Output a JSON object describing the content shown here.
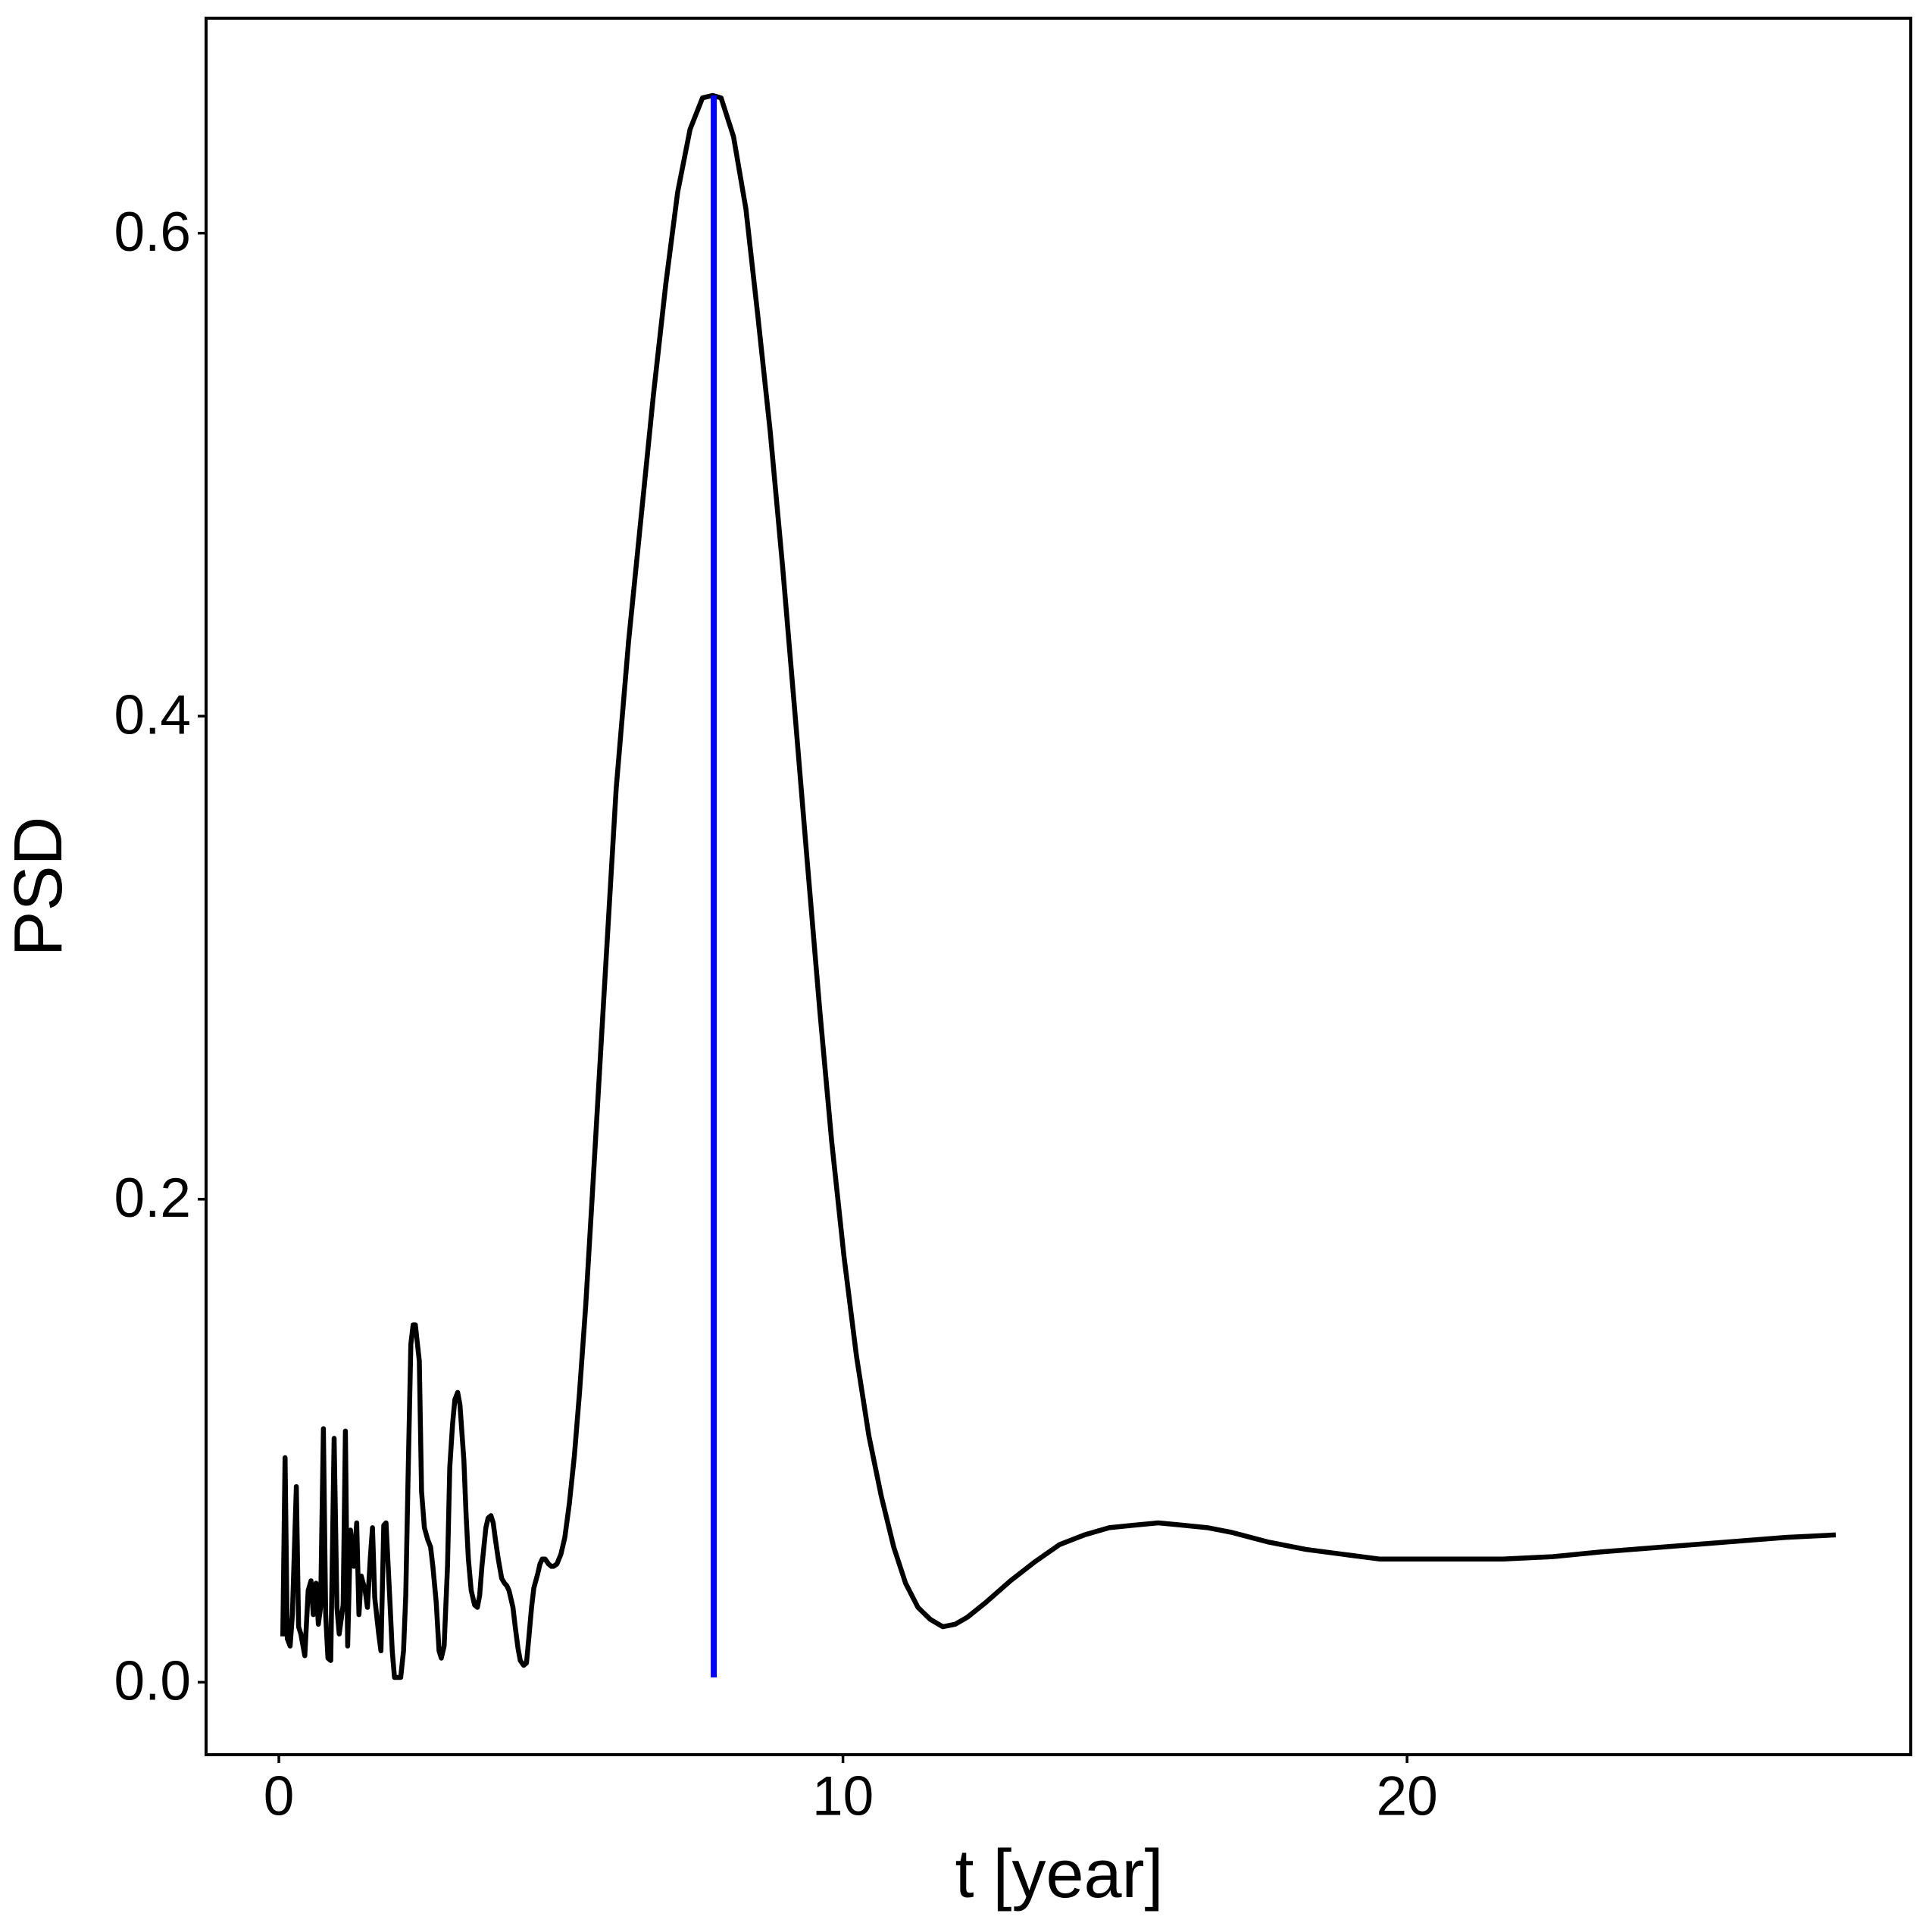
{
  "chart_data": {
    "type": "line",
    "x_label": "t [year]",
    "y_label": "PSD",
    "xlim": [
      -1.29,
      28.93
    ],
    "ylim": [
      -0.03,
      0.689
    ],
    "xticks": [
      0,
      10,
      20
    ],
    "yticks": [
      {
        "value": 0,
        "label": "0.0"
      },
      0.2,
      0.4,
      0.6
    ],
    "grid": false,
    "series": [
      {
        "color": "#000000",
        "x": [
          0.07,
          0.11,
          0.15,
          0.2,
          0.24,
          0.31,
          0.35,
          0.39,
          0.46,
          0.52,
          0.57,
          0.61,
          0.66,
          0.7,
          0.74,
          0.79,
          0.83,
          0.87,
          0.92,
          0.98,
          1.03,
          1.07,
          1.14,
          1.18,
          1.22,
          1.27,
          1.33,
          1.38,
          1.42,
          1.46,
          1.53,
          1.57,
          1.62,
          1.66,
          1.7,
          1.77,
          1.81,
          1.86,
          1.9,
          1.97,
          2.01,
          2.05,
          2.1,
          2.16,
          2.21,
          2.25,
          2.29,
          2.34,
          2.38,
          2.42,
          2.49,
          2.53,
          2.58,
          2.64,
          2.69,
          2.73,
          2.79,
          2.84,
          2.88,
          2.93,
          2.99,
          3.03,
          3.08,
          3.12,
          3.17,
          3.21,
          3.28,
          3.32,
          3.36,
          3.41,
          3.47,
          3.52,
          3.56,
          3.6,
          3.67,
          3.71,
          3.76,
          3.8,
          3.84,
          3.89,
          3.95,
          4.0,
          4.04,
          4.08,
          4.15,
          4.19,
          4.24,
          4.28,
          4.34,
          4.39,
          4.43,
          4.48,
          4.52,
          4.59,
          4.63,
          4.67,
          4.72,
          4.78,
          4.83,
          4.87,
          4.93,
          5.0,
          5.07,
          5.15,
          5.24,
          5.33,
          5.44,
          5.55,
          5.76,
          5.98,
          6.2,
          6.42,
          6.64,
          6.86,
          7.07,
          7.29,
          7.51,
          7.69,
          7.84,
          8.06,
          8.28,
          8.49,
          8.71,
          8.93,
          9.15,
          9.37,
          9.59,
          9.8,
          10.02,
          10.24,
          10.46,
          10.68,
          10.9,
          11.11,
          11.33,
          11.55,
          11.77,
          11.99,
          12.21,
          12.53,
          12.97,
          13.41,
          13.84,
          14.28,
          14.72,
          15.15,
          15.59,
          16.03,
          16.46,
          16.9,
          17.55,
          18.21,
          18.86,
          19.52,
          20.17,
          20.83,
          21.7,
          22.58,
          23.45,
          24.54,
          25.63,
          26.72,
          27.6
        ],
        "values": [
          0.019,
          0.093,
          0.018,
          0.015,
          0.028,
          0.081,
          0.023,
          0.02,
          0.011,
          0.038,
          0.042,
          0.028,
          0.041,
          0.024,
          0.031,
          0.105,
          0.028,
          0.01,
          0.009,
          0.101,
          0.031,
          0.02,
          0.032,
          0.104,
          0.015,
          0.063,
          0.048,
          0.066,
          0.028,
          0.044,
          0.038,
          0.031,
          0.051,
          0.064,
          0.035,
          0.02,
          0.013,
          0.065,
          0.066,
          0.033,
          0.013,
          0.002,
          0.002,
          0.002,
          0.013,
          0.036,
          0.084,
          0.14,
          0.148,
          0.148,
          0.133,
          0.079,
          0.064,
          0.059,
          0.056,
          0.048,
          0.033,
          0.013,
          0.01,
          0.015,
          0.048,
          0.089,
          0.107,
          0.117,
          0.12,
          0.115,
          0.092,
          0.069,
          0.051,
          0.038,
          0.032,
          0.031,
          0.036,
          0.048,
          0.064,
          0.068,
          0.069,
          0.066,
          0.059,
          0.051,
          0.043,
          0.041,
          0.04,
          0.038,
          0.031,
          0.023,
          0.014,
          0.009,
          0.007,
          0.008,
          0.018,
          0.031,
          0.039,
          0.045,
          0.049,
          0.051,
          0.051,
          0.049,
          0.048,
          0.048,
          0.049,
          0.053,
          0.06,
          0.074,
          0.094,
          0.12,
          0.156,
          0.199,
          0.283,
          0.37,
          0.431,
          0.482,
          0.533,
          0.579,
          0.617,
          0.643,
          0.656,
          0.657,
          0.656,
          0.64,
          0.61,
          0.566,
          0.518,
          0.462,
          0.401,
          0.339,
          0.278,
          0.224,
          0.176,
          0.135,
          0.102,
          0.077,
          0.056,
          0.041,
          0.031,
          0.026,
          0.023,
          0.024,
          0.027,
          0.033,
          0.042,
          0.05,
          0.057,
          0.061,
          0.064,
          0.065,
          0.066,
          0.065,
          0.064,
          0.062,
          0.058,
          0.055,
          0.053,
          0.051,
          0.051,
          0.051,
          0.051,
          0.052,
          0.054,
          0.056,
          0.058,
          0.06,
          0.061
        ]
      },
      {
        "color": "#0000ff",
        "x": [
          7.71,
          7.71
        ],
        "values": [
          0.002,
          0.657
        ]
      }
    ]
  }
}
